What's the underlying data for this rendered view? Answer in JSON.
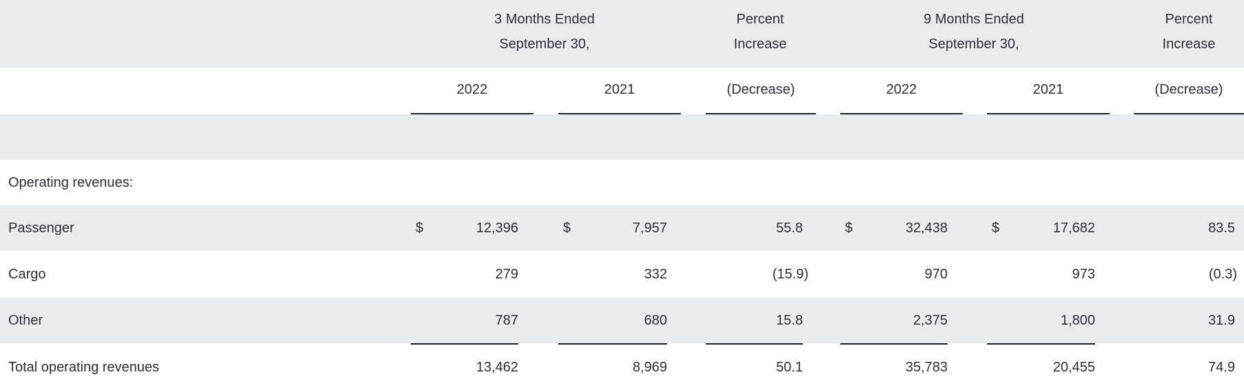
{
  "header": {
    "period3": [
      "3 Months Ended",
      "September 30,"
    ],
    "period9": [
      "9 Months Ended",
      "September 30,"
    ],
    "pct1": [
      "Percent",
      "Increase"
    ],
    "pct2": [
      "Percent",
      "Increase"
    ],
    "years": [
      "2022",
      "2021",
      "(Decrease)",
      "2022",
      "2021",
      "(Decrease)"
    ]
  },
  "section_label": "Operating revenues:",
  "rows": [
    {
      "label": "Passenger",
      "dollar": "$",
      "values": [
        "12,396",
        "7,957",
        "55.8",
        "32,438",
        "17,682",
        "83.5"
      ]
    },
    {
      "label": "Cargo",
      "dollar": "",
      "values": [
        "279",
        "332",
        "(15.9)",
        "970",
        "973",
        "(0.3)"
      ]
    },
    {
      "label": "Other",
      "dollar": "",
      "values": [
        "787",
        "680",
        "15.8",
        "2,375",
        "1,800",
        "31.9"
      ]
    },
    {
      "label": "Total operating revenues",
      "dollar": "",
      "values": [
        "13,462",
        "8,969",
        "50.1",
        "35,783",
        "20,455",
        "74.9"
      ]
    }
  ]
}
